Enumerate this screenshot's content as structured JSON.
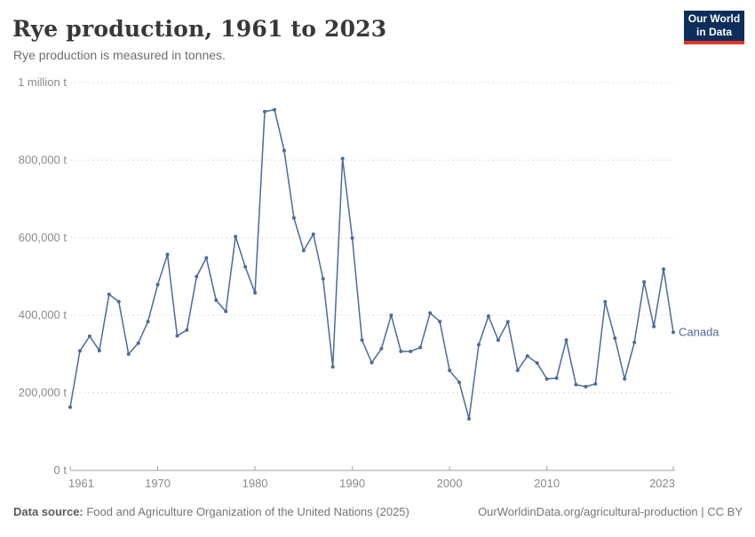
{
  "header": {
    "title": "Rye production, 1961 to 2023",
    "subtitle": "Rye production is measured in tonnes.",
    "logo": {
      "line1": "Our World",
      "line2": "in Data"
    }
  },
  "footer": {
    "source_label": "Data source:",
    "source_text": " Food and Agriculture Organization of the United Nations (2025)",
    "right_text": "OurWorldinData.org/agricultural-production | CC BY"
  },
  "colors": {
    "series": "#4C6A9C",
    "grid": "#dddddd",
    "axis": "#a3a3a3",
    "tick_text": "#8a8a8a",
    "logo_bg": "#0d2e5a",
    "logo_red": "#e0362c"
  },
  "chart_data": {
    "type": "line",
    "title": "Rye production, 1961 to 2023",
    "ylabel": "tonnes",
    "xlabel": "Year",
    "xlim": [
      1961,
      2023
    ],
    "ylim": [
      0,
      1000000
    ],
    "grid": "horizontal-dashed",
    "legend_position": "end-of-line",
    "x_ticks": [
      1961,
      1970,
      1980,
      1990,
      2000,
      2010,
      2023
    ],
    "y_ticks": [
      {
        "value": 0,
        "label": "0 t"
      },
      {
        "value": 200000,
        "label": "200,000 t"
      },
      {
        "value": 400000,
        "label": "400,000 t"
      },
      {
        "value": 600000,
        "label": "600,000 t"
      },
      {
        "value": 800000,
        "label": "800,000 t"
      },
      {
        "value": 1000000,
        "label": "1 million t"
      }
    ],
    "series": [
      {
        "name": "Canada",
        "color": "#4C6A9C",
        "x": [
          1961,
          1962,
          1963,
          1964,
          1965,
          1966,
          1967,
          1968,
          1969,
          1970,
          1971,
          1972,
          1973,
          1974,
          1975,
          1976,
          1977,
          1978,
          1979,
          1980,
          1981,
          1982,
          1983,
          1984,
          1985,
          1986,
          1987,
          1988,
          1989,
          1990,
          1991,
          1992,
          1993,
          1994,
          1995,
          1996,
          1997,
          1998,
          1999,
          2000,
          2001,
          2002,
          2003,
          2004,
          2005,
          2006,
          2007,
          2008,
          2009,
          2010,
          2011,
          2012,
          2013,
          2014,
          2015,
          2016,
          2017,
          2018,
          2019,
          2020,
          2021,
          2022,
          2023
        ],
        "values": [
          163000,
          308000,
          346000,
          309000,
          454000,
          435000,
          300000,
          328000,
          384000,
          479000,
          557000,
          347000,
          362000,
          500000,
          548000,
          439000,
          410000,
          603000,
          525000,
          458000,
          925000,
          930000,
          825000,
          651000,
          567000,
          609000,
          494000,
          267000,
          804000,
          599000,
          336000,
          278000,
          314000,
          400000,
          307000,
          307000,
          317000,
          406000,
          384000,
          258000,
          227000,
          133000,
          324000,
          398000,
          336000,
          383000,
          258000,
          295000,
          277000,
          236000,
          238000,
          336000,
          221000,
          216000,
          223000,
          435000,
          341000,
          236000,
          330000,
          486000,
          371000,
          519000,
          356000
        ]
      }
    ]
  }
}
